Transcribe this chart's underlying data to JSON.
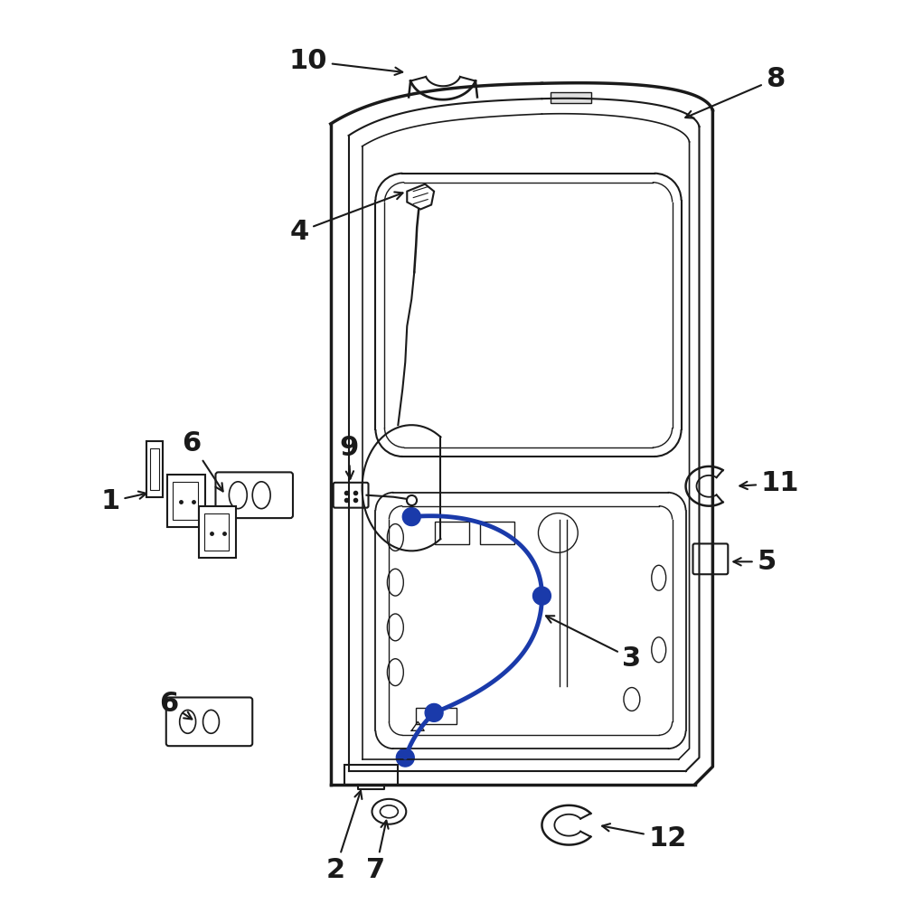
{
  "bg_color": "#ffffff",
  "line_color": "#1a1a1a",
  "blue_color": "#1a3aaa",
  "figsize": [
    10,
    10
  ],
  "dpi": 100
}
